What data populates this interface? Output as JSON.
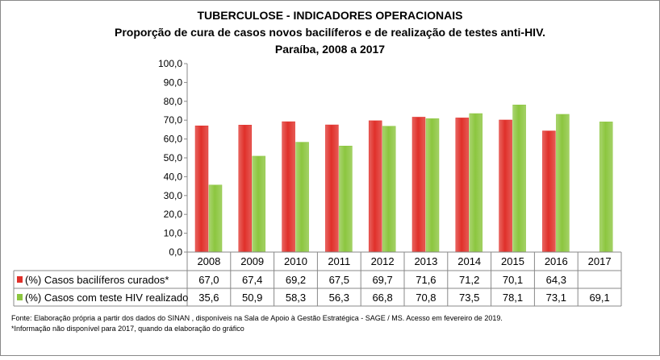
{
  "chart_data": {
    "type": "bar",
    "title": [
      "TUBERCULOSE - INDICADORES OPERACIONAIS",
      "Proporção de cura de casos novos bacilíferos e de realização de testes anti-HIV.",
      "Paraíba, 2008 a 2017"
    ],
    "categories": [
      "2008",
      "2009",
      "2010",
      "2011",
      "2012",
      "2013",
      "2014",
      "2015",
      "2016",
      "2017"
    ],
    "series": [
      {
        "name": "(%) Casos bacilíferos curados*",
        "color": "#e0302a",
        "values": [
          67.0,
          67.4,
          69.2,
          67.5,
          69.7,
          71.6,
          71.2,
          70.1,
          64.3,
          null
        ]
      },
      {
        "name": "(%) Casos com teste HIV realizado",
        "color": "#8cc63f",
        "values": [
          35.6,
          50.9,
          58.3,
          56.3,
          66.8,
          70.8,
          73.5,
          78.1,
          73.1,
          69.1
        ]
      }
    ],
    "ylim": [
      0,
      100
    ],
    "yticks": [
      "0,0",
      "10,0",
      "20,0",
      "30,0",
      "40,0",
      "50,0",
      "60,0",
      "70,0",
      "80,0",
      "90,0",
      "100,0"
    ],
    "legend": "data-table below chart",
    "grid": false
  },
  "footnotes": [
    "Fonte: Elaboração própria a partir dos dados do SINAN , disponíveis na Sala de  Apoio  à Gestão Estratégica - SAGE / MS. Acesso  em fevereiro de 2019.",
    "*Informação não  disponível  para 2017,  quando da elaboração do gráfico"
  ]
}
